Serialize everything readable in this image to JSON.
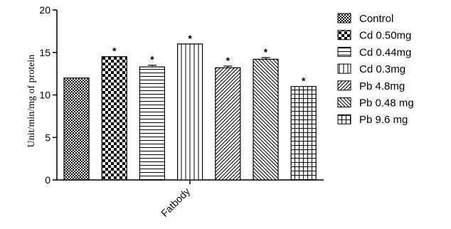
{
  "chart_data": {
    "type": "bar",
    "ylabel": "Unit/min/mg of protein",
    "xlabel": "",
    "categories": [
      "Fatbody"
    ],
    "ylim": [
      0,
      20
    ],
    "yticks": [
      0,
      5,
      10,
      15,
      20
    ],
    "grid": false,
    "legend_position": "right",
    "series": [
      {
        "name": "Control",
        "value": 12.0,
        "error": 0.0,
        "significance": "",
        "pattern": "dense-checker"
      },
      {
        "name": "Cd 0.50mg",
        "value": 14.5,
        "error": 0.0,
        "significance": "*",
        "pattern": "checker"
      },
      {
        "name": "Cd 0.44mg",
        "value": 13.3,
        "error": 0.2,
        "significance": "*",
        "pattern": "horizontal-lines"
      },
      {
        "name": "Cd 0.3mg",
        "value": 16.0,
        "error": 0.0,
        "significance": "*",
        "pattern": "vertical-lines"
      },
      {
        "name": "Pb 4.8mg",
        "value": 13.2,
        "error": 0.2,
        "significance": "*",
        "pattern": "diagonal-up"
      },
      {
        "name": "Pb 0.48 mg",
        "value": 14.2,
        "error": 0.2,
        "significance": "*",
        "pattern": "diagonal-down"
      },
      {
        "name": "Pb 9.6 mg",
        "value": 11.0,
        "error": 0.0,
        "significance": "*",
        "pattern": "grid"
      }
    ]
  }
}
